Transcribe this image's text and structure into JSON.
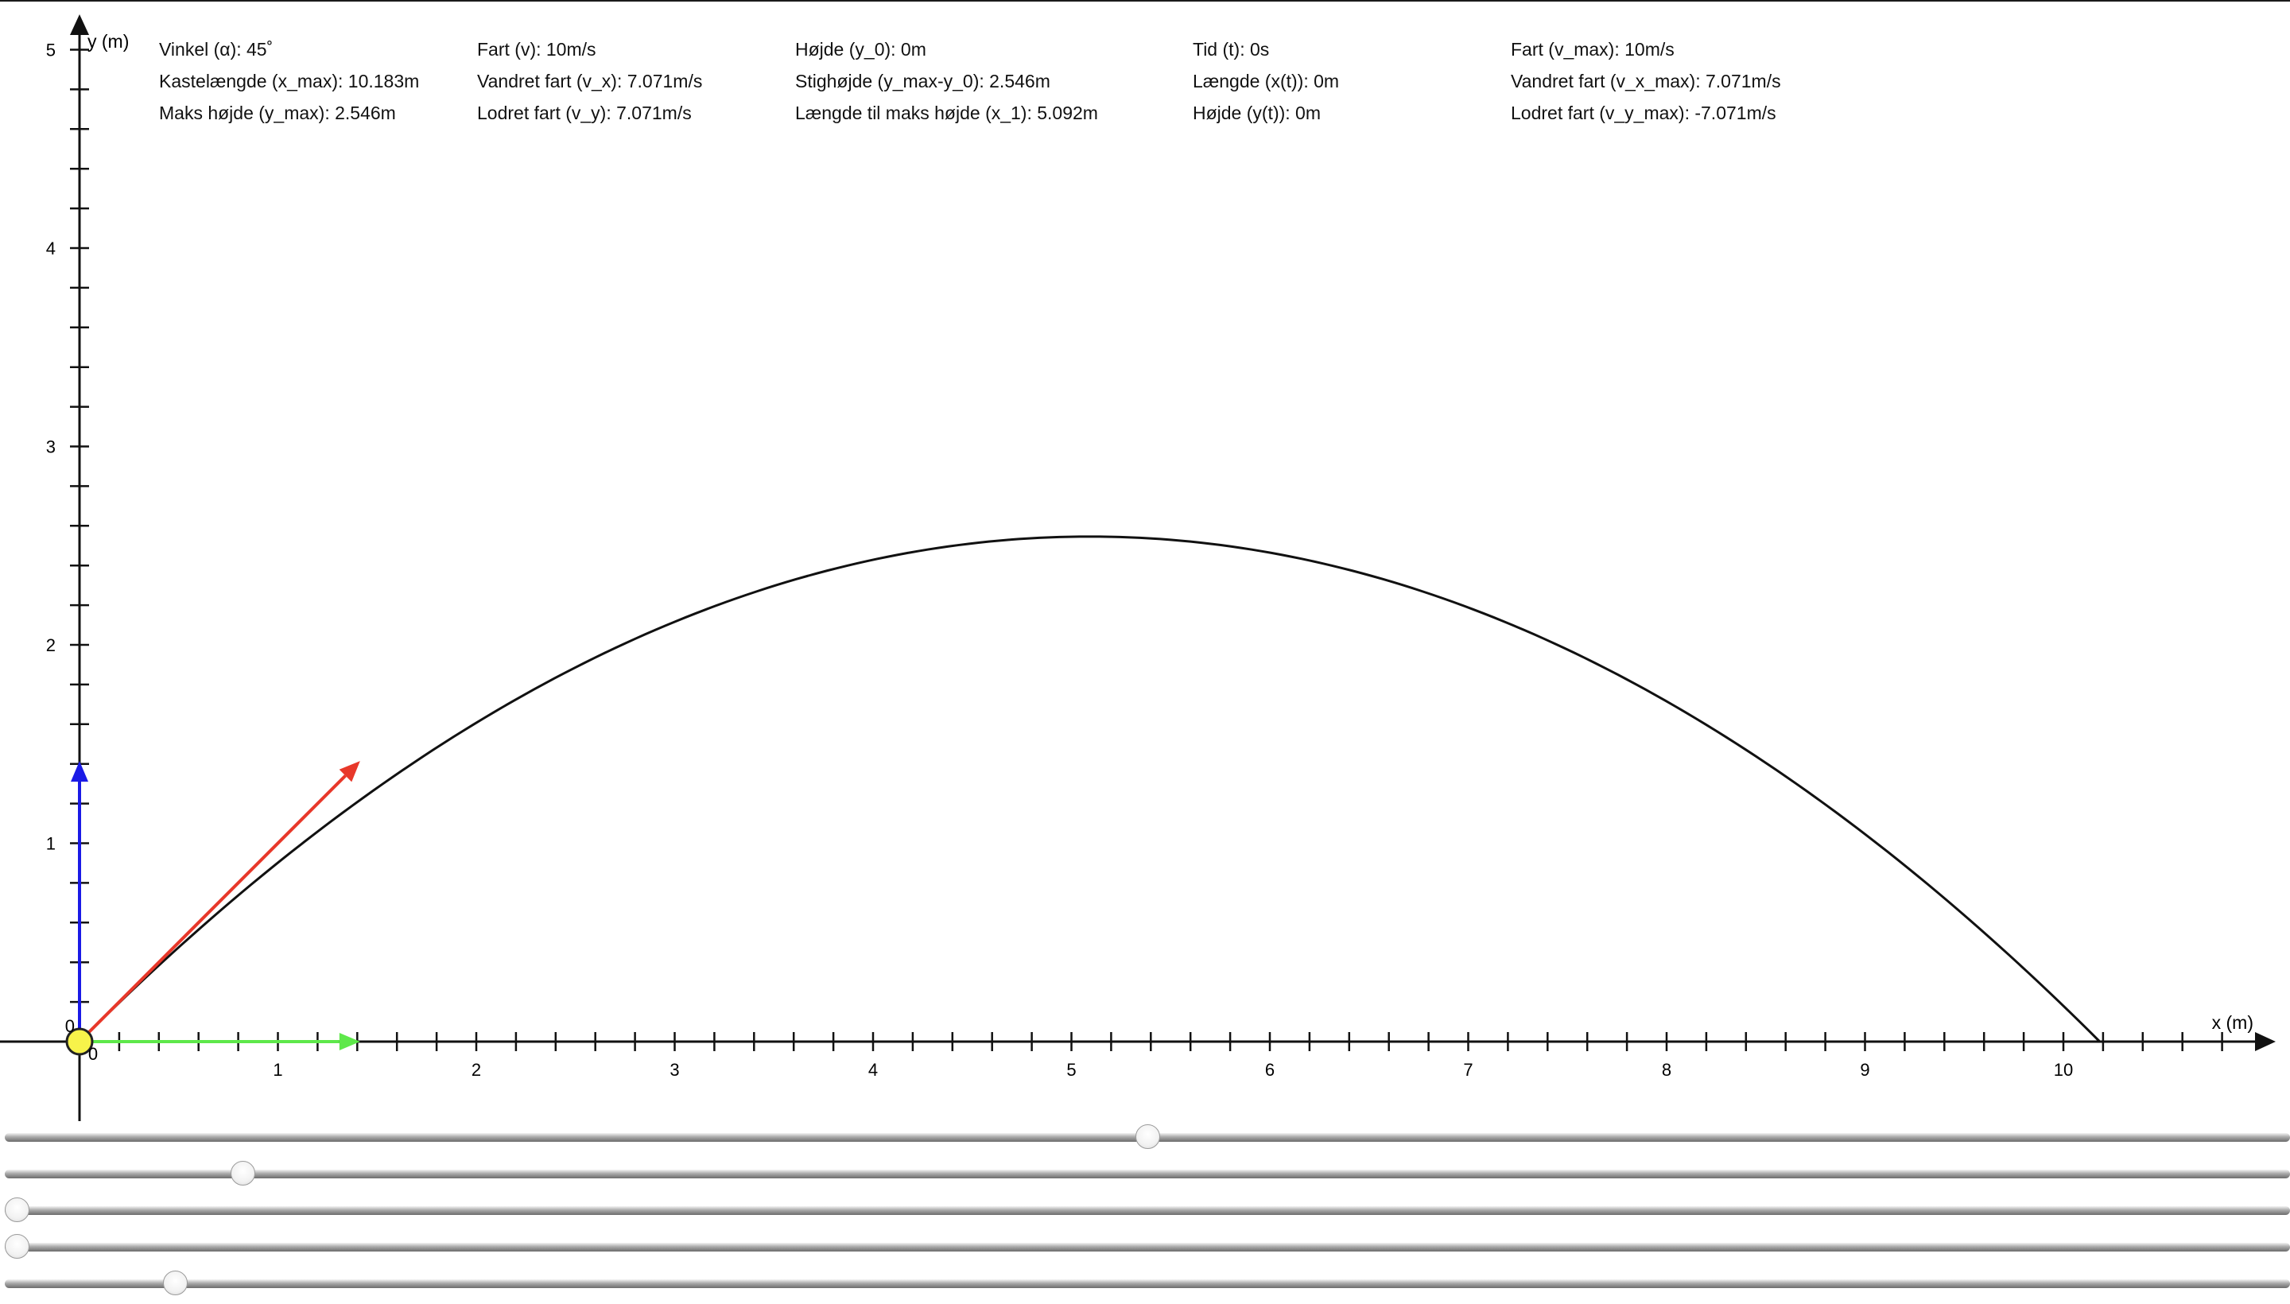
{
  "axes": {
    "x_label": "x (m)",
    "y_label": "y (m)",
    "x_ticks": [
      "1",
      "2",
      "3",
      "4",
      "5",
      "6",
      "7",
      "8",
      "9",
      "10"
    ],
    "y_ticks": [
      "1",
      "2",
      "3",
      "4",
      "5"
    ],
    "origin_x_label": "0",
    "origin_y_label": "0"
  },
  "readouts": {
    "col1": [
      "Vinkel (α): 45˚",
      "Kastelængde (x_max): 10.183m",
      "Maks højde (y_max): 2.546m"
    ],
    "col2": [
      "Fart (v): 10m/s",
      "Vandret fart (v_x): 7.071m/s",
      "Lodret fart (v_y): 7.071m/s"
    ],
    "col3": [
      "Højde (y_0): 0m",
      "Stighøjde (y_max-y_0): 2.546m",
      "Længde til maks højde (x_1): 5.092m"
    ],
    "col4": [
      "Tid (t): 0s",
      "Længde (x(t)): 0m",
      "Højde (y(t)): 0m"
    ],
    "col5": [
      "Fart (v_max): 10m/s",
      "Vandret fart (v_x_max): 7.071m/s",
      "Lodret fart (v_y_max): -7.071m/s"
    ]
  },
  "physics": {
    "angle_deg": 45,
    "speed": 10,
    "initial_height": 0,
    "time": 0,
    "g": 9.82,
    "range_m": 10.183,
    "apex_x_m": 5.092,
    "apex_y_m": 2.546
  },
  "vectors": {
    "velocity_color": "#e8382a",
    "horizontal_color": "#5ee84a",
    "vertical_color": "#1a1ae6",
    "vector_scale_m_per_mps": 0.2
  },
  "ball_color": "#f7f34a",
  "sliders": [
    {
      "name": "angle-slider",
      "value_fraction": 0.5
    },
    {
      "name": "speed-slider",
      "value_fraction": 0.1
    },
    {
      "name": "height-slider",
      "value_fraction": 0.0
    },
    {
      "name": "time-slider",
      "value_fraction": 0.0
    },
    {
      "name": "gravity-slider",
      "value_fraction": 0.07
    }
  ]
}
